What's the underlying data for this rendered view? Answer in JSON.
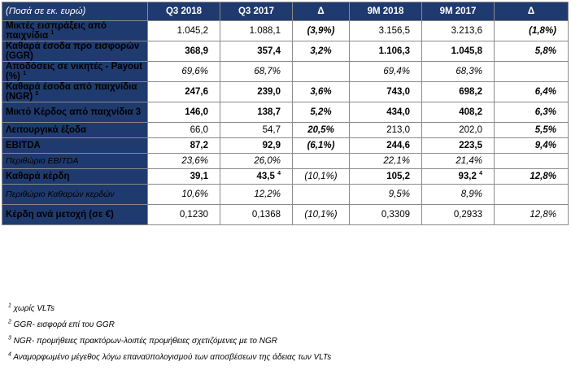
{
  "header": {
    "col0": "(Ποσά σε εκ. ευρώ)",
    "col1": "Q3 2018",
    "col2": "Q3 2017",
    "col3": "Δ",
    "col4": "9M 2018",
    "col5": "9M 2017",
    "col6": "Δ"
  },
  "rows": [
    {
      "label": "Μικτές εισπράξεις από παιχνίδια",
      "sup": "1",
      "v": [
        "1.045,2",
        "1.088,1",
        "(3,9%)",
        "3.156,5",
        "3.213,6",
        "(1,8%)"
      ]
    },
    {
      "label": "Καθαρά έσοδα προ εισφορών (GGR)",
      "sup": "",
      "v": [
        "368,9",
        "357,4",
        "3,2%",
        "1.106,3",
        "1.045,8",
        "5,8%"
      ]
    },
    {
      "label": "Αποδόσεις σε νικητές - Payout (%)",
      "sup": "1",
      "v": [
        "69,6%",
        "68,7%",
        "",
        "69,4%",
        "68,3%",
        ""
      ]
    },
    {
      "label": "Καθαρά έσοδα από παιχνίδια (NGR)",
      "sup": "2",
      "v": [
        "247,6",
        "239,0",
        "3,6%",
        "743,0",
        "698,2",
        "6,4%"
      ]
    },
    {
      "label": "Μικτό Κέρδος από παιχνίδια 3",
      "sup": "",
      "v": [
        "146,0",
        "138,7",
        "5,2%",
        "434,0",
        "408,2",
        "6,3%"
      ]
    },
    {
      "label": "Λειτουργικά έξοδα",
      "sup": "",
      "v": [
        "66,0",
        "54,7",
        "20,5%",
        "213,0",
        "202,0",
        "5,5%"
      ]
    },
    {
      "label": "EBITDA",
      "sup": "",
      "v": [
        "87,2",
        "92,9",
        "(6,1%)",
        "244,6",
        "223,5",
        "9,4%"
      ]
    },
    {
      "label": "Περιθώριο EBITDA",
      "sup": "",
      "v": [
        "23,6%",
        "26,0%",
        "",
        "22,1%",
        "21,4%",
        ""
      ]
    },
    {
      "label": "Καθαρά κέρδη",
      "sup": "",
      "v": [
        "39,1",
        "43,5",
        "(10,1%)",
        "105,2",
        "93,2",
        "12,8%"
      ],
      "sup_cols": {
        "1": "4",
        "4": "4"
      }
    },
    {
      "label": "Περιθώριο Καθαρών κερδών",
      "sup": "",
      "v": [
        "10,6%",
        "12,2%",
        "",
        "9,5%",
        "8,9%",
        ""
      ]
    },
    {
      "label": "Κέρδη ανά μετοχή (σε €)",
      "sup": "",
      "v": [
        "0,1230",
        "0,1368",
        "(10,1%)",
        "0,3309",
        "0,2933",
        "12,8%"
      ]
    }
  ],
  "notes": [
    {
      "sup": "1",
      "text": " χωρίς VLTs"
    },
    {
      "sup": "2",
      "text": " GGR- εισφορά επί του GGR"
    },
    {
      "sup": "3",
      "text": " NGR- προμήθειες πρακτόρων-λοιπές προμήθειες σχετιζόμενες με το NGR"
    },
    {
      "sup": "4",
      "text": " Αναμορφωμένο μέγεθος λόγω επαναϋπολογισμού των αποσβέσεων της άδειας των VLTs"
    }
  ]
}
